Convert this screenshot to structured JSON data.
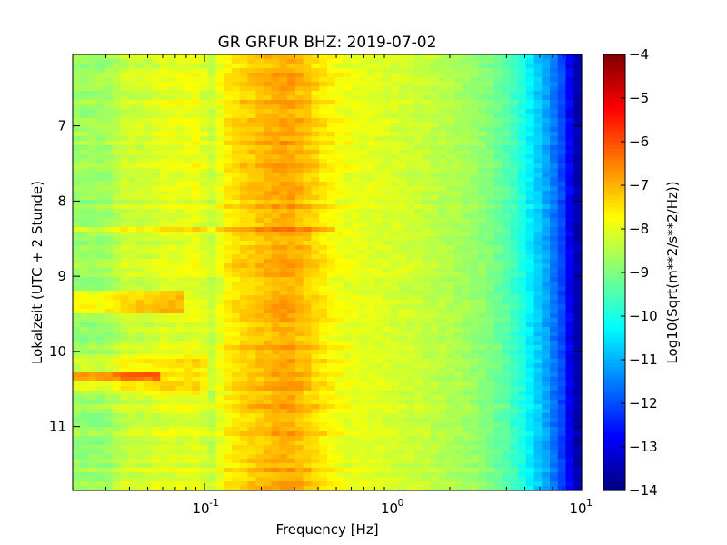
{
  "chart_data": {
    "type": "heatmap",
    "title": "GR GRFUR BHZ: 2019-07-02",
    "xlabel": "Frequency [Hz]",
    "ylabel": "Lokalzeit (UTC + 2 Stunde)",
    "x_scale": "log",
    "xlim": [
      0.02,
      10
    ],
    "ylim": [
      6.05,
      11.85
    ],
    "y_inverted": true,
    "x_ticks": [
      {
        "value": 0.1,
        "base": "10",
        "exp": "-1"
      },
      {
        "value": 1,
        "base": "10",
        "exp": "0"
      },
      {
        "value": 10,
        "base": "10",
        "exp": "1"
      }
    ],
    "y_ticks": [
      {
        "value": 7,
        "label": "7"
      },
      {
        "value": 8,
        "label": "8"
      },
      {
        "value": 9,
        "label": "9"
      },
      {
        "value": 10,
        "label": "10"
      },
      {
        "value": 11,
        "label": "11"
      }
    ],
    "colorbar": {
      "label": "Log10(Sqrt(m**2/s**2/Hz))",
      "colormap": "jet",
      "range": [
        -14,
        -4
      ],
      "ticks": [
        {
          "value": -4,
          "label": "−4"
        },
        {
          "value": -5,
          "label": "−5"
        },
        {
          "value": -6,
          "label": "−6"
        },
        {
          "value": -7,
          "label": "−7"
        },
        {
          "value": -8,
          "label": "−8"
        },
        {
          "value": -9,
          "label": "−9"
        },
        {
          "value": -10,
          "label": "−10"
        },
        {
          "value": -11,
          "label": "−11"
        },
        {
          "value": -12,
          "label": "−12"
        },
        {
          "value": -13,
          "label": "−13"
        },
        {
          "value": -14,
          "label": "−14"
        }
      ]
    },
    "frequency_profile": {
      "frequencies": [
        0.02,
        0.03,
        0.038,
        0.05,
        0.06,
        0.075,
        0.09,
        0.11,
        0.13,
        0.16,
        0.2,
        0.24,
        0.28,
        0.32,
        0.38,
        0.45,
        0.55,
        0.7,
        0.9,
        1.2,
        1.6,
        2.0,
        2.6,
        3.3,
        4.0,
        4.8,
        5.5,
        6.3,
        7.0,
        7.8,
        8.5,
        9.2,
        10
      ],
      "values": [
        -8.7,
        -8.7,
        -8.2,
        -8.2,
        -8.0,
        -8.0,
        -7.9,
        -8.3,
        -7.6,
        -7.3,
        -7.1,
        -6.9,
        -6.85,
        -7.0,
        -7.3,
        -7.6,
        -7.9,
        -8.0,
        -8.1,
        -8.2,
        -8.35,
        -8.5,
        -8.7,
        -9.0,
        -9.4,
        -9.9,
        -10.5,
        -11.0,
        -11.5,
        -12.0,
        -12.7,
        -13.3,
        -13.8
      ]
    },
    "time_features": [
      {
        "start": 9.2,
        "end": 9.5,
        "f_max": 0.08,
        "delta": 0.9
      },
      {
        "start": 10.25,
        "end": 10.4,
        "f_max": 0.06,
        "delta": 1.4
      },
      {
        "start": 10.05,
        "end": 10.6,
        "f_max": 0.1,
        "delta": 0.5
      },
      {
        "start": 8.35,
        "end": 8.38,
        "f_max": 0.5,
        "delta": 0.6
      }
    ]
  }
}
